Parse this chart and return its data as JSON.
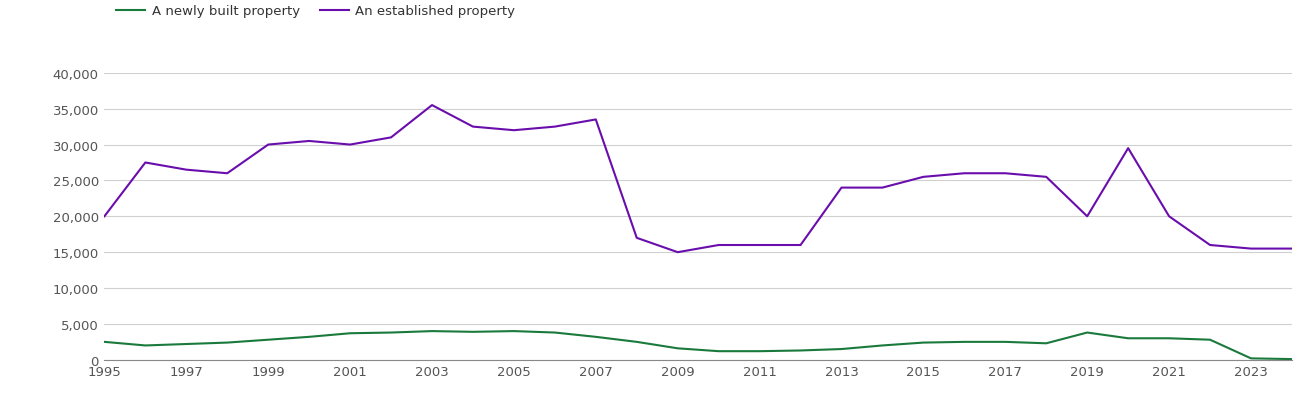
{
  "years": [
    1995,
    1996,
    1997,
    1998,
    1999,
    2000,
    2001,
    2002,
    2003,
    2004,
    2005,
    2006,
    2007,
    2008,
    2009,
    2010,
    2011,
    2012,
    2013,
    2014,
    2015,
    2016,
    2017,
    2018,
    2019,
    2020,
    2021,
    2022,
    2023,
    2024
  ],
  "new_build": [
    2500,
    2000,
    2200,
    2400,
    2800,
    3200,
    3700,
    3800,
    4000,
    3900,
    4000,
    3800,
    3200,
    2500,
    1600,
    1200,
    1200,
    1300,
    1500,
    2000,
    2400,
    2500,
    2500,
    2300,
    3800,
    3000,
    3000,
    2800,
    200,
    100
  ],
  "established": [
    20000,
    27500,
    26500,
    26000,
    30000,
    30500,
    30000,
    31000,
    35500,
    32500,
    32000,
    32500,
    33500,
    17000,
    15000,
    16000,
    16000,
    16000,
    24000,
    24000,
    25500,
    26000,
    26000,
    25500,
    20000,
    29500,
    20000,
    16000,
    15500,
    15500
  ],
  "new_build_color": "#1a7a3c",
  "established_color": "#6a0dad",
  "legend_labels": [
    "A newly built property",
    "An established property"
  ],
  "ylim": [
    0,
    40000
  ],
  "yticks": [
    0,
    5000,
    10000,
    15000,
    20000,
    25000,
    30000,
    35000,
    40000
  ],
  "xticks": [
    1995,
    1997,
    1999,
    2001,
    2003,
    2005,
    2007,
    2009,
    2011,
    2013,
    2015,
    2017,
    2019,
    2021,
    2023
  ],
  "background_color": "#ffffff",
  "grid_color": "#d0d0d0",
  "figsize": [
    13.05,
    4.1
  ],
  "dpi": 100
}
